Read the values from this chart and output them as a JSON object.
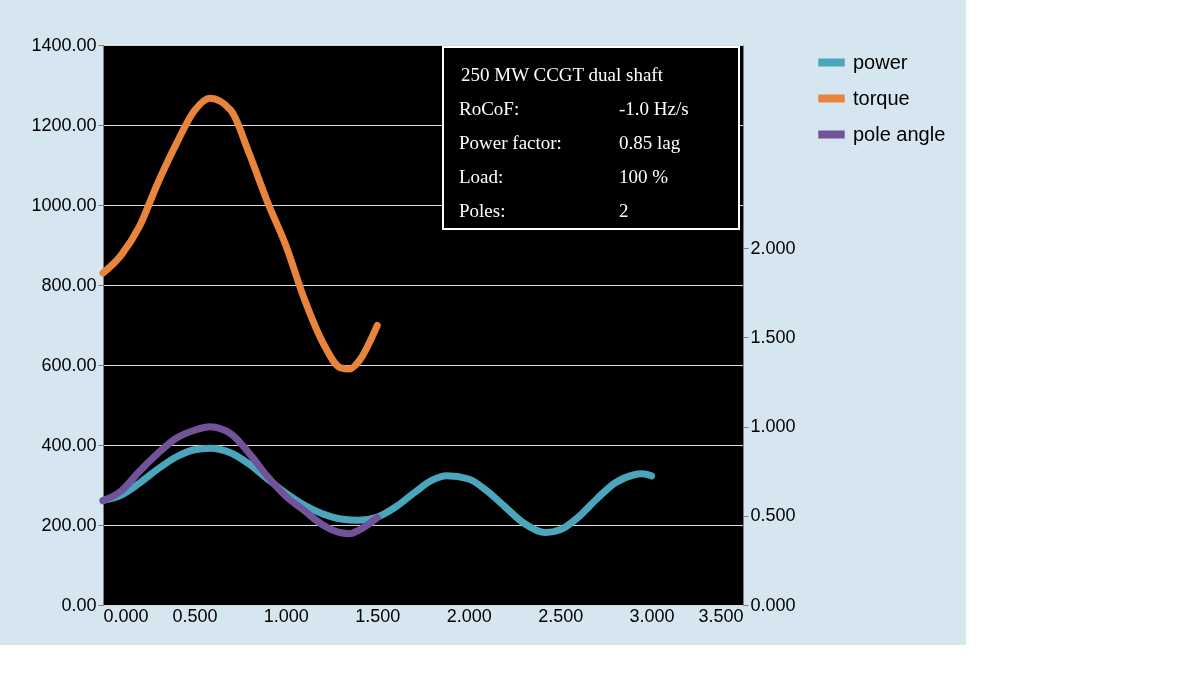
{
  "chart_data": {
    "type": "line",
    "series": [
      {
        "name": "power",
        "color": "#4ba6bc",
        "x": [
          0,
          0.1,
          0.2,
          0.3,
          0.4,
          0.5,
          0.585,
          0.7,
          0.8,
          0.9,
          1.0,
          1.1,
          1.2,
          1.3,
          1.4,
          1.5,
          1.6,
          1.7,
          1.8,
          1.88,
          2.0,
          2.1,
          2.2,
          2.3,
          2.42,
          2.5,
          2.6,
          2.7,
          2.8,
          2.9,
          2.95,
          3.0
        ],
        "values": [
          262,
          275,
          305,
          340,
          370,
          388,
          392,
          380,
          352,
          315,
          280,
          250,
          228,
          215,
          212,
          220,
          245,
          280,
          312,
          323,
          315,
          285,
          245,
          205,
          181,
          188,
          220,
          265,
          305,
          325,
          328,
          323
        ]
      },
      {
        "name": "torque",
        "color": "#e9843c",
        "x": [
          0,
          0.1,
          0.2,
          0.3,
          0.4,
          0.5,
          0.585,
          0.7,
          0.8,
          0.9,
          1.0,
          1.1,
          1.2,
          1.3,
          1.35,
          1.4,
          1.5
        ],
        "values": [
          830,
          875,
          947,
          1055,
          1152,
          1236,
          1267,
          1236,
          1128,
          1007,
          899,
          766,
          658,
          593,
          590,
          610,
          699
        ]
      },
      {
        "name": "pole angle",
        "color": "#72539a",
        "axis": "y2",
        "x": [
          0,
          0.1,
          0.2,
          0.3,
          0.4,
          0.5,
          0.585,
          0.7,
          0.8,
          0.9,
          1.0,
          1.1,
          1.2,
          1.3,
          1.35,
          1.4,
          1.5
        ],
        "values": [
          0.584,
          0.64,
          0.75,
          0.85,
          0.935,
          0.98,
          1.0,
          0.96,
          0.85,
          0.72,
          0.61,
          0.53,
          0.45,
          0.405,
          0.4,
          0.42,
          0.49
        ]
      }
    ],
    "xlim": [
      0,
      3.5
    ],
    "xticks": [
      {
        "value": 0,
        "label": "0.000"
      },
      {
        "value": 0.5,
        "label": "0.500"
      },
      {
        "value": 1,
        "label": "1.000"
      },
      {
        "value": 1.5,
        "label": "1.500"
      },
      {
        "value": 2,
        "label": "2.000"
      },
      {
        "value": 2.5,
        "label": "2.500"
      },
      {
        "value": 3,
        "label": "3.000"
      },
      {
        "value": 3.5,
        "label": "3.500"
      }
    ],
    "ylim": [
      0,
      1400
    ],
    "yticks": [
      {
        "value": 0,
        "label": "0.00"
      },
      {
        "value": 200,
        "label": "200.00"
      },
      {
        "value": 400,
        "label": "400.00"
      },
      {
        "value": 600,
        "label": "600.00"
      },
      {
        "value": 800,
        "label": "800.00"
      },
      {
        "value": 1000,
        "label": "1000.00"
      },
      {
        "value": 1200,
        "label": "1200.00"
      },
      {
        "value": 1400,
        "label": "1400.00"
      }
    ],
    "y2lim": [
      0,
      3.14
    ],
    "y2ticks": [
      {
        "value": 0,
        "label": "0.000"
      },
      {
        "value": 0.5,
        "label": "0.500"
      },
      {
        "value": 1,
        "label": "1.000"
      },
      {
        "value": 1.5,
        "label": "1.500"
      },
      {
        "value": 2,
        "label": "2.000"
      }
    ],
    "annotations": [
      "250 MW CCGT dual shaft",
      "RoCoF:",
      "-1.0 Hz/s",
      "Power factor:",
      "0.85 lag",
      "Load:",
      "100 %",
      "Poles:",
      "2"
    ],
    "grid": "y",
    "legend": "right",
    "marker": "none",
    "line_style": "solid"
  }
}
